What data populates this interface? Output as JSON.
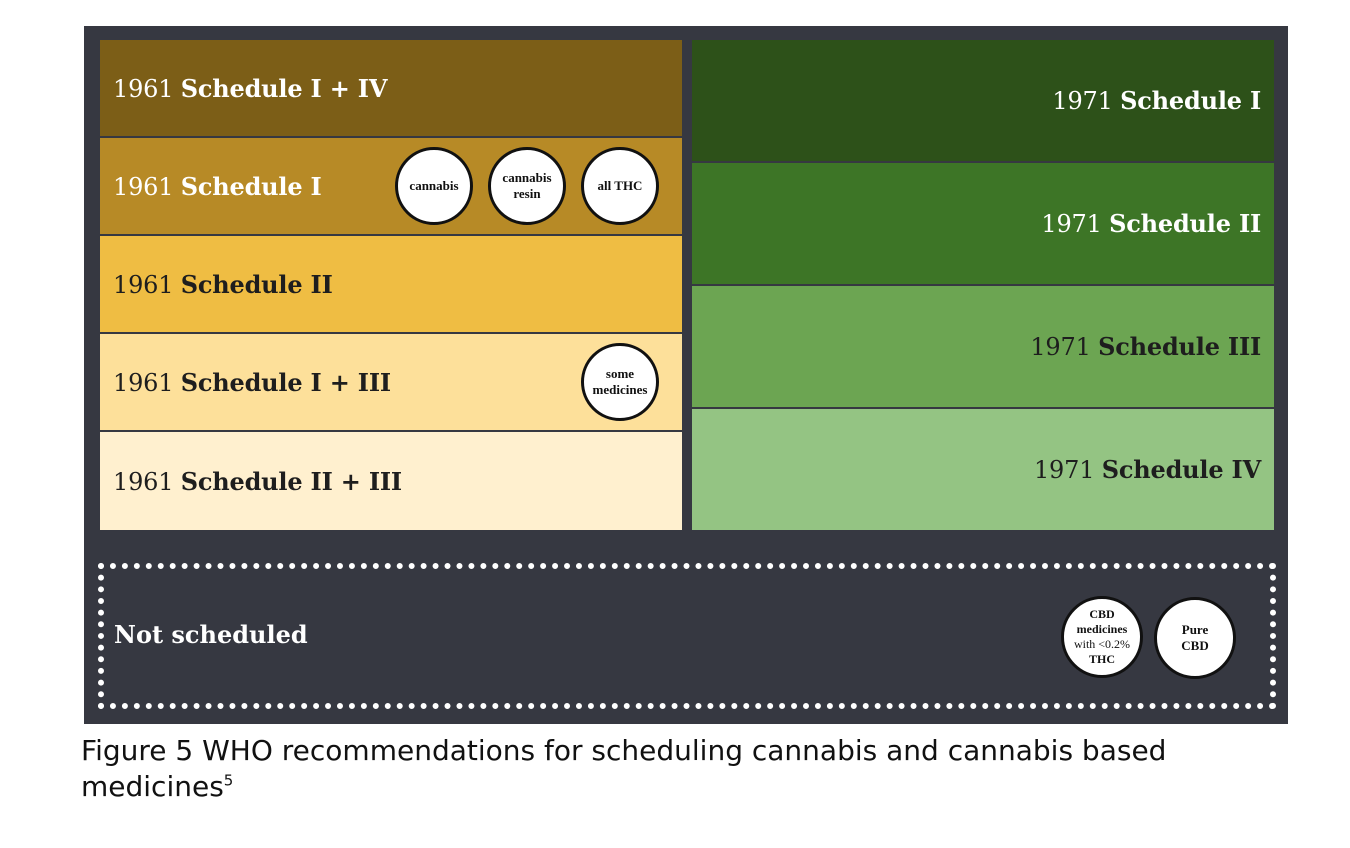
{
  "left_column": [
    {
      "year": "1961",
      "name": "Schedule I + IV",
      "color": "#7c5e17",
      "text_color": "#ffffff"
    },
    {
      "year": "1961",
      "name": "Schedule I",
      "color": "#b78a26",
      "text_color": "#ffffff"
    },
    {
      "year": "1961",
      "name": "Schedule II",
      "color": "#efbd43",
      "text_color": "#1e1e1e"
    },
    {
      "year": "1961",
      "name": "Schedule I + III",
      "color": "#fde09a",
      "text_color": "#1e1e1e"
    },
    {
      "year": "1961",
      "name": "Schedule II + III",
      "color": "#fff0cf",
      "text_color": "#1e1e1e"
    }
  ],
  "right_column": [
    {
      "year": "1971",
      "name": "Schedule I",
      "color": "#2d5119",
      "text_color": "#ffffff"
    },
    {
      "year": "1971",
      "name": "Schedule II",
      "color": "#3d7526",
      "text_color": "#ffffff"
    },
    {
      "year": "1971",
      "name": "Schedule III",
      "color": "#6ca552",
      "text_color": "#1e1e1e"
    },
    {
      "year": "1971",
      "name": "Schedule IV",
      "color": "#94c483",
      "text_color": "#1e1e1e"
    }
  ],
  "circles": {
    "cannabis": "cannabis",
    "cannabis_resin_1": "cannabis",
    "cannabis_resin_2": "resin",
    "all_thc": "all THC",
    "some_medicines_1": "some",
    "some_medicines_2": "medicines",
    "cbd_medicines_1": "CBD",
    "cbd_medicines_2": "medicines",
    "cbd_medicines_3": "with <0.2%",
    "cbd_medicines_4": "THC",
    "pure_cbd_1": "Pure",
    "pure_cbd_2": "CBD"
  },
  "not_scheduled": "Not scheduled",
  "caption": {
    "text": "Figure 5 WHO recommendations for scheduling cannabis and cannabis based medicines",
    "superscript": "5"
  },
  "colors": {
    "panel_background": "#363841",
    "circle_fill": "#ffffff",
    "circle_border": "#111111"
  }
}
